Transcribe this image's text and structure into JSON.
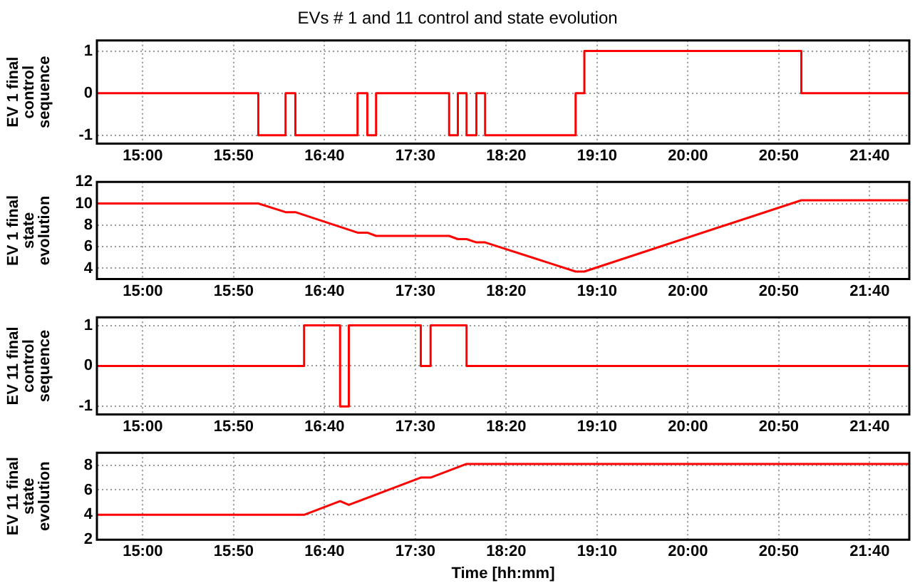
{
  "chart_data": [
    {
      "type": "step",
      "title": "EVs # 1 and 11 control and state evolution",
      "ylabel": "EV 1 final control sequence",
      "series": [
        {
          "color": "#ff0000",
          "x": [
            14.58,
            16.06,
            16.31,
            16.4,
            16.97,
            17.06,
            17.14,
            17.81,
            17.89,
            17.97,
            18.06,
            18.14,
            18.97,
            19.05,
            21.04,
            22.03
          ],
          "values": [
            0,
            -1,
            0,
            -1,
            0,
            -1,
            0,
            -1,
            0,
            -1,
            0,
            -1,
            0,
            1,
            0,
            0
          ]
        }
      ],
      "xlim": [
        14.58,
        22.03
      ],
      "xticks": [
        {
          "value": 15,
          "label": "15:00"
        },
        {
          "value": 15.8333,
          "label": "15:50"
        },
        {
          "value": 16.6667,
          "label": "16:40"
        },
        {
          "value": 17.5,
          "label": "17:30"
        },
        {
          "value": 18.3333,
          "label": "18:20"
        },
        {
          "value": 19.1667,
          "label": "19:10"
        },
        {
          "value": 20,
          "label": "20:00"
        },
        {
          "value": 20.8333,
          "label": "20:50"
        },
        {
          "value": 21.6667,
          "label": "21:40"
        }
      ],
      "ylim": [
        -1.2,
        1.25
      ],
      "yticks": [
        -1,
        0,
        1
      ],
      "grid": true,
      "legend": false,
      "marker": "none",
      "line_style": "solid"
    },
    {
      "type": "line",
      "ylabel": "EV 1 final state evolution",
      "series": [
        {
          "color": "#ff0000",
          "x": [
            14.58,
            16.06,
            16.31,
            16.4,
            16.97,
            17.06,
            17.14,
            17.81,
            17.89,
            17.97,
            18.06,
            18.14,
            18.97,
            19.05,
            21.04,
            22.03
          ],
          "values": [
            10,
            10,
            9.2,
            9.2,
            7.3,
            7.3,
            7,
            7,
            6.7,
            6.7,
            6.4,
            6.4,
            3.7,
            3.7,
            10.3,
            10.3
          ]
        }
      ],
      "xlim": [
        14.58,
        22.03
      ],
      "xticks": [
        {
          "value": 15,
          "label": "15:00"
        },
        {
          "value": 15.8333,
          "label": "15:50"
        },
        {
          "value": 16.6667,
          "label": "16:40"
        },
        {
          "value": 17.5,
          "label": "17:30"
        },
        {
          "value": 18.3333,
          "label": "18:20"
        },
        {
          "value": 19.1667,
          "label": "19:10"
        },
        {
          "value": 20,
          "label": "20:00"
        },
        {
          "value": 20.8333,
          "label": "20:50"
        },
        {
          "value": 21.6667,
          "label": "21:40"
        }
      ],
      "ylim": [
        3,
        12
      ],
      "yticks": [
        4,
        6,
        8,
        10,
        12
      ],
      "grid": true,
      "legend": false,
      "marker": "none",
      "line_style": "solid"
    },
    {
      "type": "step",
      "ylabel": "EV 11 final control sequence",
      "series": [
        {
          "color": "#ff0000",
          "x": [
            14.58,
            16.48,
            16.81,
            16.89,
            17.55,
            17.64,
            17.97,
            22.03
          ],
          "values": [
            0,
            1,
            -1,
            1,
            0,
            1,
            0,
            0
          ]
        }
      ],
      "xlim": [
        14.58,
        22.03
      ],
      "xticks": [
        {
          "value": 15,
          "label": "15:00"
        },
        {
          "value": 15.8333,
          "label": "15:50"
        },
        {
          "value": 16.6667,
          "label": "16:40"
        },
        {
          "value": 17.5,
          "label": "17:30"
        },
        {
          "value": 18.3333,
          "label": "18:20"
        },
        {
          "value": 19.1667,
          "label": "19:10"
        },
        {
          "value": 20,
          "label": "20:00"
        },
        {
          "value": 20.8333,
          "label": "20:50"
        },
        {
          "value": 21.6667,
          "label": "21:40"
        }
      ],
      "ylim": [
        -1.2,
        1.2
      ],
      "yticks": [
        -1,
        0,
        1
      ],
      "grid": true,
      "legend": false,
      "marker": "none",
      "line_style": "solid"
    },
    {
      "type": "line",
      "ylabel": "EV 11 final state evolution",
      "xlabel": "Time [hh:mm]",
      "series": [
        {
          "color": "#ff0000",
          "x": [
            14.58,
            16.48,
            16.81,
            16.89,
            17.55,
            17.64,
            17.97,
            22.03
          ],
          "values": [
            4,
            4,
            5.1,
            4.8,
            7,
            7,
            8.1,
            8.1
          ]
        }
      ],
      "xlim": [
        14.58,
        22.03
      ],
      "xticks": [
        {
          "value": 15,
          "label": "15:00"
        },
        {
          "value": 15.8333,
          "label": "15:50"
        },
        {
          "value": 16.6667,
          "label": "16:40"
        },
        {
          "value": 17.5,
          "label": "17:30"
        },
        {
          "value": 18.3333,
          "label": "18:20"
        },
        {
          "value": 19.1667,
          "label": "19:10"
        },
        {
          "value": 20,
          "label": "20:00"
        },
        {
          "value": 20.8333,
          "label": "20:50"
        },
        {
          "value": 21.6667,
          "label": "21:40"
        }
      ],
      "ylim": [
        2,
        9
      ],
      "yticks": [
        2,
        4,
        6,
        8
      ],
      "grid": true,
      "legend": false,
      "marker": "none",
      "line_style": "solid"
    }
  ]
}
